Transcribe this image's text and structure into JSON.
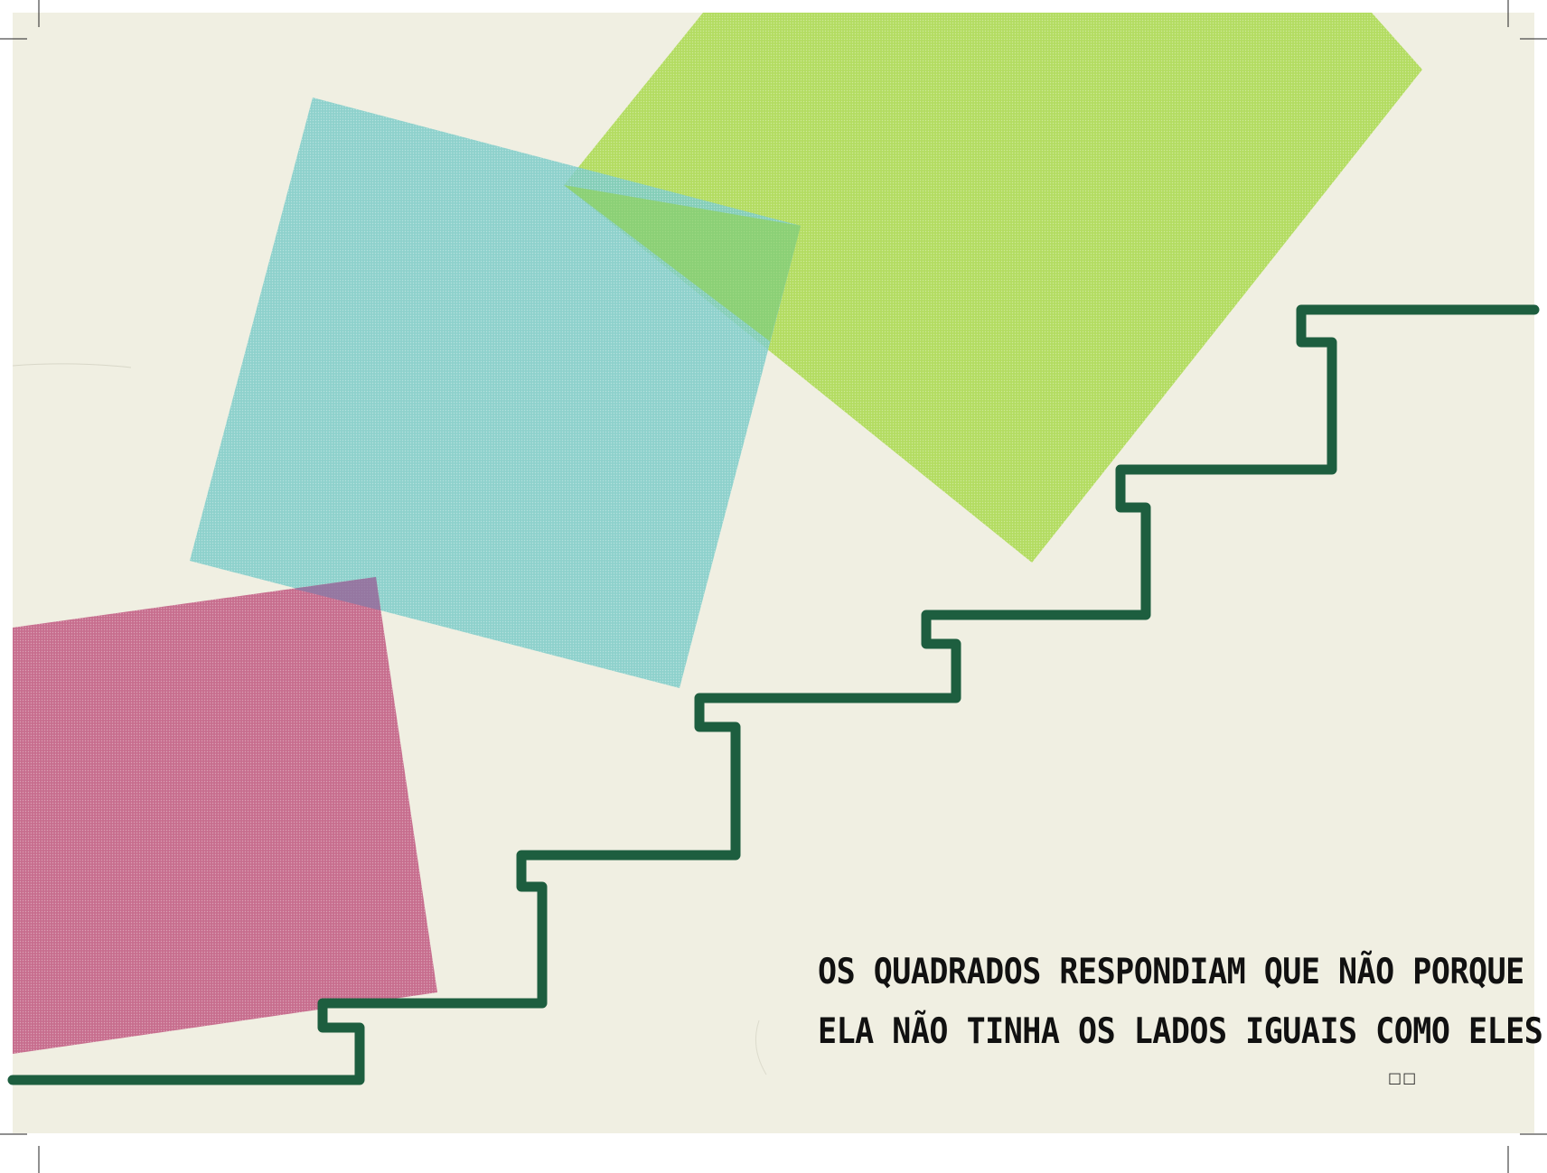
{
  "page": {
    "paper_color": "#f0efe2",
    "stair_color": "#1d5e3f",
    "caption_color": "#111111"
  },
  "shapes": {
    "green_polygon_color": "#a8d84a",
    "blue_square_color": "#7ccbc8",
    "pink_square_color": "#c0577f"
  },
  "caption": {
    "line1": "OS QUADRADOS RESPONDIAM QUE NÃO PORQUE",
    "line2": "ELA NÃO TINHA OS LADOS IGUAIS COMO ELES"
  },
  "page_number": "□□"
}
